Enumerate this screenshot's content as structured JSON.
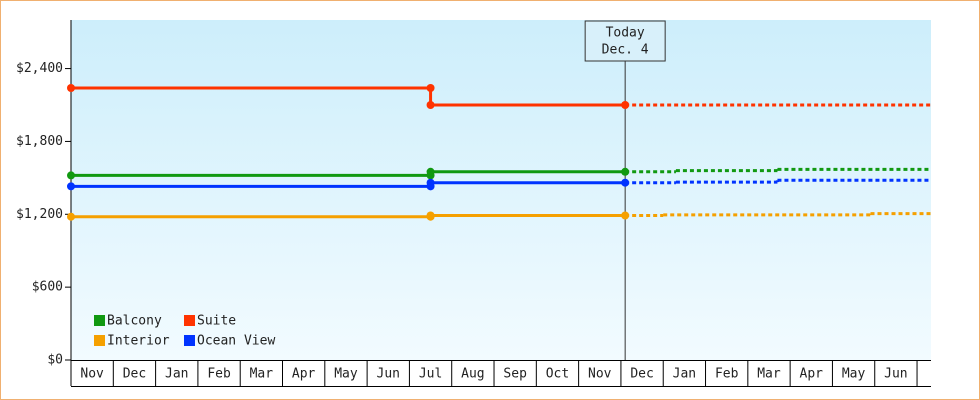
{
  "chart_data": {
    "type": "line",
    "categories": [
      "Nov",
      "Dec",
      "Jan",
      "Feb",
      "Mar",
      "Apr",
      "May",
      "Jun",
      "Jul",
      "Aug",
      "Sep",
      "Oct",
      "Nov",
      "Dec",
      "Jan",
      "Feb",
      "Mar",
      "Apr",
      "May",
      "Jun"
    ],
    "xlim": [
      0,
      20.33
    ],
    "ylim": [
      0,
      2800
    ],
    "yticks": [
      {
        "value": 0,
        "label": "$0"
      },
      {
        "value": 600,
        "label": "$600"
      },
      {
        "value": 1200,
        "label": "$1,200"
      },
      {
        "value": 1800,
        "label": "$1,800"
      },
      {
        "value": 2400,
        "label": "$2,400"
      }
    ],
    "annotation": {
      "x": 13.1,
      "lines": [
        "Today",
        "Dec. 4"
      ]
    },
    "legend": "lower left",
    "series": [
      {
        "name": "Balcony",
        "color": "#119911",
        "x": [
          0,
          8.5,
          13.1
        ],
        "values": [
          1520,
          1550,
          1550
        ],
        "forecast_x": [
          13.1,
          14.3,
          16.7,
          20.33
        ],
        "forecast_values": [
          1550,
          1560,
          1570,
          1570
        ]
      },
      {
        "name": "Suite",
        "color": "#ff3300",
        "x": [
          0,
          8.5,
          13.1
        ],
        "values": [
          2240,
          2100,
          2100
        ],
        "forecast_x": [
          13.1,
          20.33
        ],
        "forecast_values": [
          2100,
          2100
        ]
      },
      {
        "name": "Interior",
        "color": "#f5a000",
        "x": [
          0,
          8.5,
          13.1
        ],
        "values": [
          1180,
          1190,
          1190
        ],
        "forecast_x": [
          13.1,
          14.0,
          18.9,
          20.33
        ],
        "forecast_values": [
          1190,
          1195,
          1205,
          1205
        ]
      },
      {
        "name": "Ocean View",
        "color": "#0033ff",
        "x": [
          0,
          8.5,
          13.1
        ],
        "values": [
          1430,
          1460,
          1460
        ],
        "forecast_x": [
          13.1,
          14.3,
          16.7,
          20.33
        ],
        "forecast_values": [
          1460,
          1465,
          1480,
          1480
        ]
      }
    ]
  }
}
